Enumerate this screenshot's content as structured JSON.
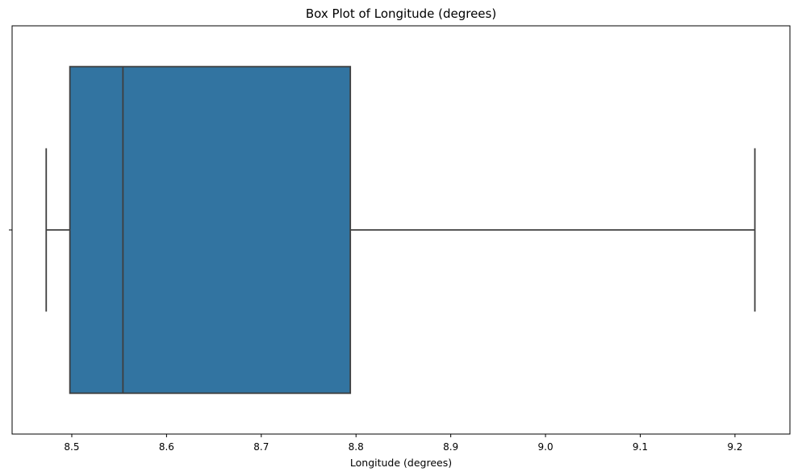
{
  "chart_data": {
    "type": "box",
    "title": "Box Plot of Longitude (degrees)",
    "xlabel": "Longitude (degrees)",
    "ylabel": "",
    "orientation": "horizontal",
    "xlim": [
      8.437,
      9.258
    ],
    "x_ticks": [
      8.5,
      8.6,
      8.7,
      8.8,
      8.9,
      9.0,
      9.1,
      9.2
    ],
    "x_tick_labels": [
      "8.5",
      "8.6",
      "8.7",
      "8.8",
      "8.9",
      "9.0",
      "9.1",
      "9.2"
    ],
    "grid": false,
    "series": [
      {
        "whisker_low": 8.473,
        "q1": 8.498,
        "median": 8.554,
        "q3": 8.794,
        "whisker_high": 9.221
      }
    ],
    "colors": {
      "box_fill": "#3274a1",
      "line": "#3f3f3f",
      "frame": "#000000"
    }
  }
}
